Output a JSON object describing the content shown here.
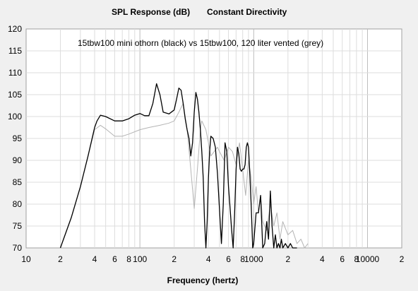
{
  "window": {
    "title": "SPL Response (dB)",
    "subtitle": "Constant Directivity"
  },
  "chart_data": {
    "type": "line",
    "title": "SPL Response (dB)",
    "subtitle": "Constant Directivity",
    "xlabel": "Frequency (hertz)",
    "ylabel": "",
    "xscale": "log",
    "xlim": [
      10,
      20000
    ],
    "ylim": [
      70,
      120
    ],
    "grid": true,
    "annotation": "15tbw100 mini othorn (black) vs 15tbw100, 120 liter vented (grey)",
    "y_ticks": [
      70,
      75,
      80,
      85,
      90,
      95,
      100,
      105,
      110,
      115,
      120
    ],
    "x_ticks": [
      {
        "value": 10,
        "label": "10"
      },
      {
        "value": 20,
        "label": "2"
      },
      {
        "value": 40,
        "label": "4"
      },
      {
        "value": 60,
        "label": "6"
      },
      {
        "value": 80,
        "label": "8"
      },
      {
        "value": 100,
        "label": "100"
      },
      {
        "value": 200,
        "label": "2"
      },
      {
        "value": 400,
        "label": "4"
      },
      {
        "value": 600,
        "label": "6"
      },
      {
        "value": 800,
        "label": "8"
      },
      {
        "value": 1000,
        "label": "1000"
      },
      {
        "value": 2000,
        "label": "2"
      },
      {
        "value": 4000,
        "label": "4"
      },
      {
        "value": 6000,
        "label": "6"
      },
      {
        "value": 8000,
        "label": "8"
      },
      {
        "value": 10000,
        "label": "10000"
      },
      {
        "value": 20000,
        "label": "2"
      }
    ],
    "series": [
      {
        "color": "#b4b4b4",
        "x": [
          20,
          25,
          30,
          35,
          40,
          45,
          50,
          60,
          70,
          80,
          100,
          120,
          150,
          180,
          200,
          220,
          240,
          260,
          280,
          300,
          320,
          340,
          350,
          380,
          400,
          420,
          450,
          480,
          500,
          550,
          600,
          650,
          700,
          750,
          800,
          850,
          900,
          950,
          1000,
          1050,
          1100,
          1150,
          1200,
          1300,
          1400,
          1500,
          1600,
          1700,
          1800,
          2000,
          2200,
          2400,
          2600,
          2800,
          3000
        ],
        "y": [
          70,
          77,
          84,
          91,
          97,
          98,
          97.2,
          95.5,
          95.5,
          96,
          97,
          97.5,
          98,
          98.5,
          99,
          101,
          103,
          97,
          88,
          79,
          88,
          97,
          99,
          97,
          94,
          91,
          92,
          93,
          92,
          90,
          93,
          92,
          89,
          94,
          88,
          82,
          90,
          86,
          80,
          84,
          78,
          82,
          76,
          74,
          80,
          75,
          78,
          72,
          76,
          73,
          74,
          71,
          72,
          70,
          71
        ]
      },
      {
        "color": "#000000",
        "x": [
          20,
          25,
          30,
          35,
          40,
          42,
          45,
          50,
          60,
          70,
          80,
          90,
          100,
          110,
          120,
          130,
          140,
          150,
          160,
          180,
          200,
          210,
          220,
          230,
          240,
          250,
          260,
          270,
          280,
          290,
          300,
          310,
          320,
          330,
          340,
          350,
          360,
          370,
          380,
          390,
          400,
          410,
          420,
          440,
          460,
          480,
          500,
          520,
          540,
          560,
          580,
          600,
          620,
          640,
          660,
          680,
          700,
          720,
          740,
          760,
          780,
          800,
          820,
          840,
          860,
          880,
          900,
          920,
          950,
          980,
          1000,
          1050,
          1100,
          1150,
          1200,
          1250,
          1300,
          1350,
          1400,
          1450,
          1500,
          1550,
          1600,
          1650,
          1700,
          1750,
          1800,
          1900,
          2000,
          2100,
          2200,
          2400
        ],
        "y": [
          70,
          77,
          84,
          91,
          97.5,
          99,
          100.3,
          100,
          99,
          99,
          99.5,
          100.3,
          100.7,
          100.2,
          100.2,
          103,
          107.5,
          105,
          101,
          100.6,
          101.5,
          104,
          106.5,
          106,
          103,
          99.5,
          97,
          95,
          91,
          94,
          101,
          105.5,
          104,
          101,
          97,
          92,
          86,
          76,
          70,
          76,
          86,
          92,
          95.5,
          95,
          93,
          87,
          79,
          71,
          80,
          94,
          92,
          84,
          79,
          74,
          70,
          78,
          88,
          93,
          91.5,
          88,
          87.5,
          88,
          88,
          89,
          93,
          94,
          93,
          88,
          80,
          70,
          71,
          78,
          78,
          82,
          70,
          71,
          76,
          72,
          83,
          75,
          70,
          73,
          70,
          71,
          70,
          72,
          70,
          71,
          70,
          71,
          70,
          70
        ]
      }
    ]
  }
}
